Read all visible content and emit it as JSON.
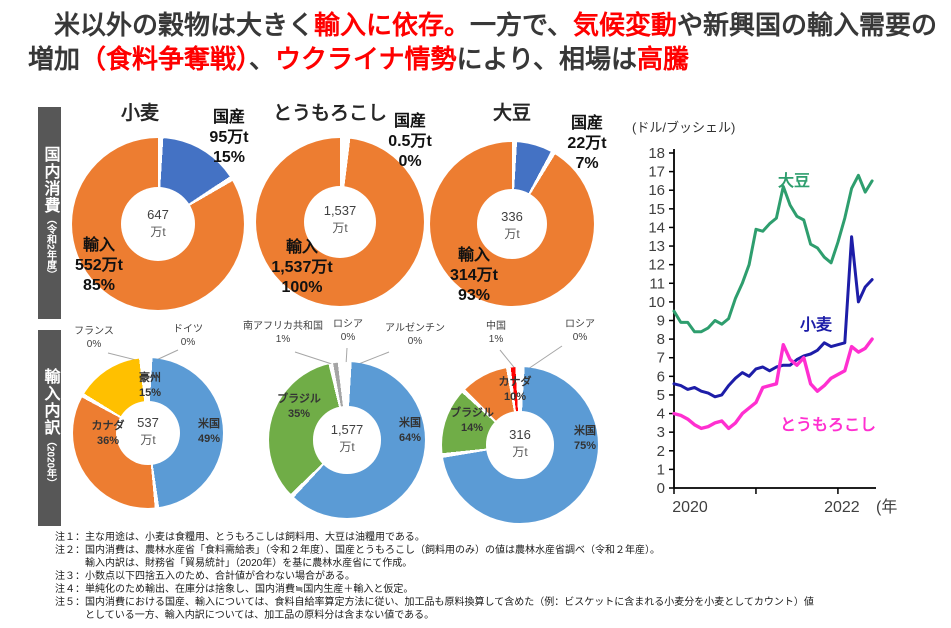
{
  "title": {
    "segments": [
      {
        "text": "　米以外の穀物は大きく",
        "emphasis": "normal"
      },
      {
        "text": "輸入に依存。",
        "emphasis": "red"
      },
      {
        "text": "一方で、",
        "emphasis": "normal"
      },
      {
        "text": "気候変動",
        "emphasis": "red"
      },
      {
        "text": "や新興国の輸入需要の増加",
        "emphasis": "normal"
      },
      {
        "text": "（食料争奪戦）",
        "emphasis": "red"
      },
      {
        "text": "、",
        "emphasis": "normal"
      },
      {
        "text": "ウクライナ情勢",
        "emphasis": "red"
      },
      {
        "text": "により、相場は",
        "emphasis": "normal"
      },
      {
        "text": "高騰",
        "emphasis": "red"
      }
    ]
  },
  "sidebars": [
    {
      "main": "国内消費",
      "sub": "（令和2年度）"
    },
    {
      "main": "輸入内訳",
      "sub": "（2020年）"
    }
  ],
  "chart_data": [
    {
      "type": "pie",
      "title": "小麦",
      "group": "国内消費（令和2年度）",
      "center_value": "647",
      "center_unit": "万t",
      "slices": [
        {
          "label": "国産",
          "value": "95万t",
          "pct": 15,
          "pct_label": "15%",
          "color": "#4472C4"
        },
        {
          "label": "輸入",
          "value": "552万t",
          "pct": 85,
          "pct_label": "85%",
          "color": "#ED7D31"
        }
      ]
    },
    {
      "type": "pie",
      "title": "とうもろこし",
      "group": "国内消費（令和2年度）",
      "center_value": "1,537",
      "center_unit": "万t",
      "slices": [
        {
          "label": "国産",
          "value": "0.5万t",
          "pct": 0,
          "pct_label": "0%",
          "color": "#4472C4"
        },
        {
          "label": "輸入",
          "value": "1,537万t",
          "pct": 100,
          "pct_label": "100%",
          "color": "#ED7D31"
        }
      ]
    },
    {
      "type": "pie",
      "title": "大豆",
      "group": "国内消費（令和2年度）",
      "center_value": "336",
      "center_unit": "万t",
      "slices": [
        {
          "label": "国産",
          "value": "22万t",
          "pct": 7,
          "pct_label": "7%",
          "color": "#4472C4"
        },
        {
          "label": "輸入",
          "value": "314万t",
          "pct": 93,
          "pct_label": "93%",
          "color": "#ED7D31"
        }
      ]
    },
    {
      "type": "pie",
      "title": "小麦（輸入内訳）",
      "group": "輸入内訳（2020年）",
      "center_value": "537",
      "center_unit": "万t",
      "slices": [
        {
          "label": "米国",
          "pct": 49,
          "pct_label": "49%",
          "color": "#5B9BD5"
        },
        {
          "label": "カナダ",
          "pct": 36,
          "pct_label": "36%",
          "color": "#ED7D31"
        },
        {
          "label": "豪州",
          "pct": 15,
          "pct_label": "15%",
          "color": "#FFC000"
        },
        {
          "label": "フランス",
          "pct": 0,
          "pct_label": "0%",
          "color": "#A5A5A5"
        },
        {
          "label": "ドイツ",
          "pct": 0,
          "pct_label": "0%",
          "color": "#A5A5A5"
        }
      ]
    },
    {
      "type": "pie",
      "title": "とうもろこし（輸入内訳）",
      "group": "輸入内訳（2020年）",
      "center_value": "1,577",
      "center_unit": "万t",
      "slices": [
        {
          "label": "米国",
          "pct": 64,
          "pct_label": "64%",
          "color": "#5B9BD5"
        },
        {
          "label": "ブラジル",
          "pct": 35,
          "pct_label": "35%",
          "color": "#70AD47"
        },
        {
          "label": "南アフリカ共和国",
          "pct": 1,
          "pct_label": "1%",
          "color": "#A5A5A5"
        },
        {
          "label": "ロシア",
          "pct": 0,
          "pct_label": "0%",
          "color": "#A5A5A5"
        },
        {
          "label": "アルゼンチン",
          "pct": 0,
          "pct_label": "0%",
          "color": "#A5A5A5"
        }
      ]
    },
    {
      "type": "pie",
      "title": "大豆（輸入内訳）",
      "group": "輸入内訳（2020年）",
      "center_value": "316",
      "center_unit": "万t",
      "slices": [
        {
          "label": "米国",
          "pct": 75,
          "pct_label": "75%",
          "color": "#5B9BD5"
        },
        {
          "label": "ブラジル",
          "pct": 14,
          "pct_label": "14%",
          "color": "#70AD47"
        },
        {
          "label": "カナダ",
          "pct": 10,
          "pct_label": "10%",
          "color": "#ED7D31"
        },
        {
          "label": "中国",
          "pct": 1,
          "pct_label": "1%",
          "color": "#FF0000"
        },
        {
          "label": "ロシア",
          "pct": 0,
          "pct_label": "0%",
          "color": "#A5A5A5"
        }
      ]
    },
    {
      "type": "line",
      "y_axis": {
        "title": "(ドル/ブッシェル)",
        "min": 0,
        "max": 18,
        "tick_step": 1
      },
      "x_axis": {
        "suffix": "(年",
        "range": {
          "start": "2020-01",
          "end": "2022-06",
          "interval": "monthly"
        },
        "ticks": [
          {
            "month": 0,
            "label": "2020"
          },
          {
            "month": 12,
            "label": ""
          },
          {
            "month": 24,
            "label": "2022"
          }
        ]
      },
      "series": [
        {
          "name": "大豆",
          "color": "#2e9e6e",
          "width": 3,
          "values": [
            9.5,
            8.9,
            8.9,
            8.4,
            8.4,
            8.6,
            9.0,
            8.8,
            9.1,
            10.2,
            11.0,
            12.0,
            13.9,
            13.8,
            14.2,
            14.5,
            16.2,
            15.2,
            14.6,
            14.4,
            13.1,
            12.9,
            12.4,
            12.1,
            13.2,
            14.5,
            16.1,
            16.8,
            15.9,
            16.5
          ]
        },
        {
          "name": "小麦",
          "color": "#1d1da8",
          "width": 3,
          "values": [
            5.6,
            5.5,
            5.3,
            5.4,
            5.2,
            5.1,
            4.9,
            5.0,
            5.5,
            5.9,
            6.2,
            6.0,
            6.4,
            6.5,
            6.3,
            6.5,
            6.6,
            6.6,
            6.9,
            7.1,
            7.2,
            7.4,
            7.8,
            7.6,
            7.7,
            7.8,
            13.5,
            10.0,
            10.8,
            11.2
          ]
        },
        {
          "name": "とうもろこし",
          "color": "#ff2fd0",
          "width": 3.4,
          "values": [
            4.0,
            3.9,
            3.7,
            3.4,
            3.2,
            3.3,
            3.5,
            3.6,
            3.2,
            3.5,
            4.0,
            4.3,
            4.6,
            5.4,
            5.5,
            5.6,
            7.7,
            6.9,
            6.6,
            7.0,
            5.6,
            5.2,
            5.5,
            5.9,
            6.1,
            6.3,
            7.6,
            7.3,
            7.5,
            8.0
          ]
        }
      ]
    }
  ],
  "notes": [
    "注１：主な用途は、小麦は食糧用、とうもろこしは飼料用、大豆は油糧用である。",
    "注２：国内消費は、農林水産省「食料需給表」（令和２年度）、国産とうもろこし（飼料用のみ）の値は農林水産省調べ（令和２年産）。",
    "　　　輸入内訳は、財務省「貿易統計」（2020年）を基に農林水産省にて作成。",
    "注３：小数点以下四捨五入のため、合計値が合わない場合がある。",
    "注４：単純化のため輸出、在庫分は捨象し、国内消費≒国内生産＋輸入と仮定。",
    "注５：国内消費における国産、輸入については、食料自給率算定方法に従い、加工品も原料換算して含めた（例：ビスケットに含まれる小麦分を小麦としてカウント）値",
    "　　　としている一方、輸入内訳については、加工品の原料分は含まない値である。"
  ],
  "colors": {
    "accent_red": "#ff0000",
    "import_orange": "#ED7D31",
    "domestic_blue": "#4472C4",
    "usa_blue": "#5B9BD5",
    "brazil_green": "#70AD47",
    "australia_yellow": "#FFC000",
    "sidebar_gray": "#575757",
    "soy_line": "#2e9e6e",
    "wheat_line": "#1d1da8",
    "corn_line": "#ff2fd0"
  }
}
